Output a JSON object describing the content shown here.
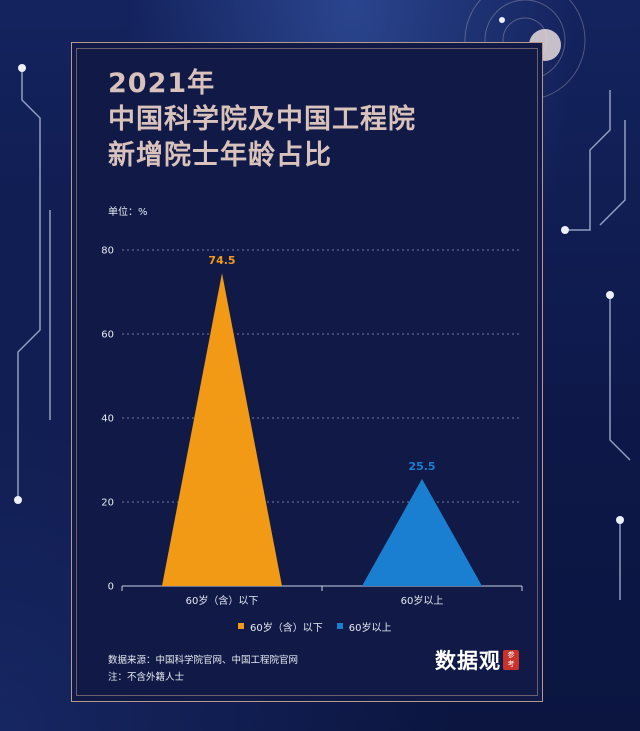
{
  "title_lines": [
    "2021年",
    "中国科学院及中国工程院",
    "新增院士年龄占比"
  ],
  "unit_label": "单位：%",
  "legend": [
    {
      "label": "60岁（含）以下",
      "color": "#f29a16"
    },
    {
      "label": "60岁以上",
      "color": "#1a7fd0"
    }
  ],
  "source_lines": [
    "数据来源：中国科学院官网、中国工程院官网",
    "注：不含外籍人士"
  ],
  "logo": {
    "text": "数据观",
    "badge_top": "参",
    "badge_bottom": "考"
  },
  "chart_data": {
    "type": "area",
    "categories": [
      "60岁（含）以下",
      "60岁以上"
    ],
    "values": [
      74.5,
      25.5
    ],
    "value_labels": [
      "74.5",
      "25.5"
    ],
    "colors": [
      "#f29a16",
      "#1a7fd0"
    ],
    "ylim": [
      0,
      80
    ],
    "yticks": [
      0,
      20,
      40,
      60,
      80
    ],
    "grid": true,
    "legend_position": "bottom"
  }
}
